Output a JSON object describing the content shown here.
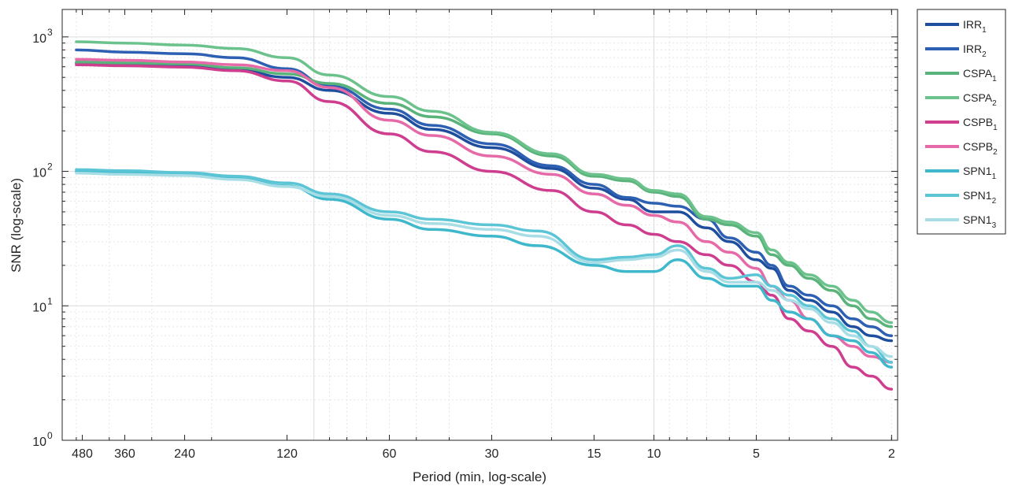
{
  "chart_data": {
    "type": "line",
    "title": "",
    "xlabel": "Period (min, log-scale)",
    "ylabel": "SNR (log-scale)",
    "xscale": "log",
    "yscale": "log",
    "xaxis_reversed": true,
    "xlim": [
      1.92,
      550
    ],
    "ylim": [
      1,
      1600
    ],
    "grid": true,
    "legend_position": "outside-right-top",
    "xticks": [
      480,
      360,
      240,
      120,
      60,
      30,
      15,
      10,
      5,
      2
    ],
    "xtick_labels": [
      "480",
      "360",
      "240",
      "120",
      "60",
      "30",
      "15",
      "10",
      "5",
      "2"
    ],
    "yticks": [
      {
        "value": 1,
        "base": "10",
        "exp": "0"
      },
      {
        "value": 10,
        "base": "10",
        "exp": "1"
      },
      {
        "value": 100,
        "base": "10",
        "exp": "2"
      },
      {
        "value": 1000,
        "base": "10",
        "exp": "3"
      }
    ],
    "series": [
      {
        "name": "IRR",
        "sub": "1",
        "color": "#1f4e9e",
        "points": [
          [
            500,
            640
          ],
          [
            360,
            630
          ],
          [
            240,
            615
          ],
          [
            170,
            570
          ],
          [
            120,
            500
          ],
          [
            90,
            400
          ],
          [
            60,
            270
          ],
          [
            45,
            205
          ],
          [
            30,
            150
          ],
          [
            20,
            105
          ],
          [
            15,
            75
          ],
          [
            12,
            62
          ],
          [
            10,
            50
          ],
          [
            8.5,
            50
          ],
          [
            7,
            38
          ],
          [
            6,
            30
          ],
          [
            5,
            22
          ],
          [
            4.5,
            19
          ],
          [
            4,
            13
          ],
          [
            3.5,
            11
          ],
          [
            3,
            9
          ],
          [
            2.6,
            7
          ],
          [
            2.3,
            6
          ],
          [
            2,
            5.5
          ]
        ]
      },
      {
        "name": "IRR",
        "sub": "2",
        "color": "#2d5fb2",
        "points": [
          [
            500,
            800
          ],
          [
            360,
            770
          ],
          [
            240,
            750
          ],
          [
            170,
            700
          ],
          [
            120,
            580
          ],
          [
            90,
            430
          ],
          [
            60,
            290
          ],
          [
            45,
            220
          ],
          [
            30,
            160
          ],
          [
            20,
            110
          ],
          [
            15,
            80
          ],
          [
            12,
            64
          ],
          [
            10,
            58
          ],
          [
            8.5,
            55
          ],
          [
            7,
            44
          ],
          [
            6,
            32
          ],
          [
            5,
            25
          ],
          [
            4.5,
            20
          ],
          [
            4,
            14
          ],
          [
            3.5,
            12
          ],
          [
            3,
            10
          ],
          [
            2.6,
            8
          ],
          [
            2.3,
            7
          ],
          [
            2,
            6
          ]
        ]
      },
      {
        "name": "CSPA",
        "sub": "1",
        "color": "#5ab37a",
        "points": [
          [
            500,
            650
          ],
          [
            360,
            640
          ],
          [
            240,
            630
          ],
          [
            170,
            590
          ],
          [
            120,
            530
          ],
          [
            90,
            450
          ],
          [
            60,
            320
          ],
          [
            45,
            255
          ],
          [
            30,
            190
          ],
          [
            20,
            130
          ],
          [
            15,
            92
          ],
          [
            12,
            85
          ],
          [
            10,
            70
          ],
          [
            8.5,
            65
          ],
          [
            7,
            44
          ],
          [
            6,
            40
          ],
          [
            5,
            33
          ],
          [
            4.5,
            24
          ],
          [
            4,
            20
          ],
          [
            3.5,
            16
          ],
          [
            3,
            13
          ],
          [
            2.6,
            10
          ],
          [
            2.3,
            8
          ],
          [
            2,
            7
          ]
        ]
      },
      {
        "name": "CSPA",
        "sub": "2",
        "color": "#6cc28c",
        "points": [
          [
            500,
            920
          ],
          [
            360,
            900
          ],
          [
            240,
            870
          ],
          [
            170,
            820
          ],
          [
            120,
            700
          ],
          [
            90,
            520
          ],
          [
            60,
            360
          ],
          [
            45,
            280
          ],
          [
            30,
            195
          ],
          [
            20,
            135
          ],
          [
            15,
            95
          ],
          [
            12,
            88
          ],
          [
            10,
            72
          ],
          [
            8.5,
            68
          ],
          [
            7,
            46
          ],
          [
            6,
            42
          ],
          [
            5,
            35
          ],
          [
            4.5,
            26
          ],
          [
            4,
            21
          ],
          [
            3.5,
            17
          ],
          [
            3,
            14
          ],
          [
            2.6,
            11
          ],
          [
            2.3,
            9
          ],
          [
            2,
            7.5
          ]
        ]
      },
      {
        "name": "CSPB",
        "sub": "1",
        "color": "#cf3d8e",
        "points": [
          [
            500,
            620
          ],
          [
            360,
            610
          ],
          [
            240,
            595
          ],
          [
            170,
            560
          ],
          [
            120,
            470
          ],
          [
            90,
            330
          ],
          [
            60,
            190
          ],
          [
            45,
            140
          ],
          [
            30,
            100
          ],
          [
            20,
            72
          ],
          [
            15,
            50
          ],
          [
            12,
            40
          ],
          [
            10,
            34
          ],
          [
            8.5,
            30
          ],
          [
            7,
            24
          ],
          [
            6,
            20
          ],
          [
            5,
            15
          ],
          [
            4.5,
            12
          ],
          [
            4,
            8
          ],
          [
            3.5,
            6.5
          ],
          [
            3,
            5
          ],
          [
            2.6,
            3.5
          ],
          [
            2.3,
            3
          ],
          [
            2,
            2.4
          ]
        ]
      },
      {
        "name": "CSPB",
        "sub": "2",
        "color": "#e66aa7",
        "points": [
          [
            500,
            680
          ],
          [
            360,
            670
          ],
          [
            240,
            650
          ],
          [
            170,
            620
          ],
          [
            120,
            560
          ],
          [
            90,
            420
          ],
          [
            60,
            240
          ],
          [
            45,
            185
          ],
          [
            30,
            130
          ],
          [
            20,
            95
          ],
          [
            15,
            68
          ],
          [
            12,
            56
          ],
          [
            10,
            47
          ],
          [
            8.5,
            42
          ],
          [
            7,
            30
          ],
          [
            6,
            25
          ],
          [
            5,
            19
          ],
          [
            4.5,
            14
          ],
          [
            4,
            11
          ],
          [
            3.5,
            8
          ],
          [
            3,
            6
          ],
          [
            2.6,
            5
          ],
          [
            2.3,
            4.2
          ],
          [
            2,
            3.8
          ]
        ]
      },
      {
        "name": "SPN1",
        "sub": "1",
        "color": "#3fb8cc",
        "points": [
          [
            500,
            100
          ],
          [
            360,
            98
          ],
          [
            240,
            95
          ],
          [
            170,
            88
          ],
          [
            120,
            78
          ],
          [
            90,
            62
          ],
          [
            60,
            44
          ],
          [
            45,
            37
          ],
          [
            30,
            33
          ],
          [
            22,
            28
          ],
          [
            15,
            20
          ],
          [
            12,
            18
          ],
          [
            10,
            18
          ],
          [
            8.5,
            22
          ],
          [
            7,
            16
          ],
          [
            6,
            14
          ],
          [
            5,
            14
          ],
          [
            4.5,
            11
          ],
          [
            4,
            9
          ],
          [
            3.5,
            8
          ],
          [
            3,
            6
          ],
          [
            2.6,
            5.5
          ],
          [
            2.3,
            4.5
          ],
          [
            2,
            3.5
          ]
        ]
      },
      {
        "name": "SPN1",
        "sub": "2",
        "color": "#5bc5d6",
        "points": [
          [
            500,
            103
          ],
          [
            360,
            101
          ],
          [
            240,
            98
          ],
          [
            170,
            92
          ],
          [
            120,
            82
          ],
          [
            90,
            68
          ],
          [
            60,
            50
          ],
          [
            45,
            44
          ],
          [
            30,
            40
          ],
          [
            22,
            36
          ],
          [
            15,
            22
          ],
          [
            12,
            23
          ],
          [
            10,
            24
          ],
          [
            8.5,
            28
          ],
          [
            7,
            19
          ],
          [
            6,
            16
          ],
          [
            5,
            17
          ],
          [
            4.5,
            14
          ],
          [
            4,
            12
          ],
          [
            3.5,
            10
          ],
          [
            3,
            8
          ],
          [
            2.6,
            6.5
          ],
          [
            2.3,
            5
          ],
          [
            2,
            3.8
          ]
        ]
      },
      {
        "name": "SPN1",
        "sub": "3",
        "color": "#a9dde6",
        "points": [
          [
            500,
            97
          ],
          [
            360,
            95
          ],
          [
            240,
            93
          ],
          [
            170,
            87
          ],
          [
            120,
            77
          ],
          [
            90,
            65
          ],
          [
            60,
            47
          ],
          [
            45,
            41
          ],
          [
            30,
            37
          ],
          [
            22,
            33
          ],
          [
            15,
            21
          ],
          [
            12,
            22
          ],
          [
            10,
            23
          ],
          [
            8.5,
            26
          ],
          [
            7,
            18
          ],
          [
            6,
            15
          ],
          [
            5,
            15
          ],
          [
            4.5,
            13
          ],
          [
            4,
            11
          ],
          [
            3.5,
            9.5
          ],
          [
            3,
            7.5
          ],
          [
            2.6,
            6
          ],
          [
            2.3,
            5
          ],
          [
            2,
            4.2
          ]
        ]
      }
    ]
  }
}
